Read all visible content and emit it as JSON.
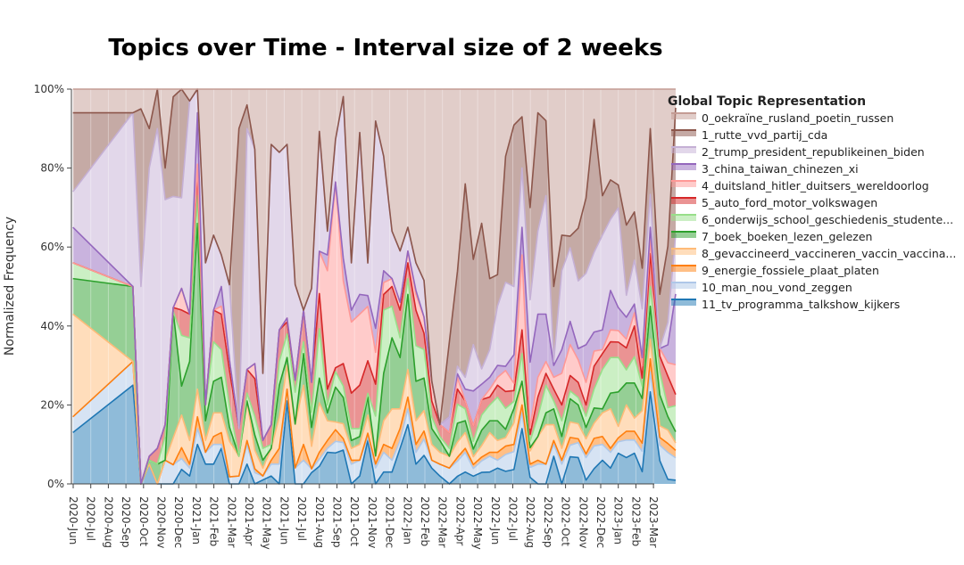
{
  "chart_data": {
    "type": "area",
    "title": "Topics over Time - Interval size of 2 weeks",
    "xlabel": "",
    "ylabel": "Normalized Frequency",
    "ylim": [
      0,
      1
    ],
    "y_ticks": [
      "0%",
      "20%",
      "40%",
      "60%",
      "80%",
      "100%"
    ],
    "y_tick_values": [
      0,
      0.2,
      0.4,
      0.6,
      0.8,
      1.0
    ],
    "x_tick_labels": [
      "2020-Jun",
      "2020-Jul",
      "2020-Aug",
      "2020-Sep",
      "2020-Oct",
      "2020-Nov",
      "2020-Dec",
      "2021-Jan",
      "2021-Feb",
      "2021-Mar",
      "2021-Apr",
      "2021-May",
      "2021-Jun",
      "2021-Jul",
      "2021-Aug",
      "2021-Sep",
      "2021-Oct",
      "2021-Nov",
      "2021-Dec",
      "2022-Jan",
      "2022-Feb",
      "2022-Mar",
      "2022-Apr",
      "2022-May",
      "2022-Jun",
      "2022-Jul",
      "2022-Aug",
      "2022-Sep",
      "2022-Oct",
      "2022-Nov",
      "2022-Dec",
      "2023-Jan",
      "2023-Feb",
      "2023-Mar"
    ],
    "x": [
      "2020-05-31",
      "2020-09-13",
      "2020-09-27",
      "2020-10-11",
      "2020-10-25",
      "2020-11-08",
      "2020-11-22",
      "2020-12-06",
      "2020-12-20",
      "2021-01-03",
      "2021-01-17",
      "2021-01-31",
      "2021-02-14",
      "2021-02-28",
      "2021-03-14",
      "2021-03-28",
      "2021-04-11",
      "2021-04-25",
      "2021-05-09",
      "2021-05-23",
      "2021-06-06",
      "2021-06-20",
      "2021-07-04",
      "2021-07-18",
      "2021-08-01",
      "2021-08-15",
      "2021-08-29",
      "2021-09-12",
      "2021-09-26",
      "2021-10-10",
      "2021-10-24",
      "2021-11-07",
      "2021-11-21",
      "2021-12-05",
      "2021-12-19",
      "2022-01-02",
      "2022-01-16",
      "2022-01-30",
      "2022-02-13",
      "2022-02-27",
      "2022-03-13",
      "2022-03-27",
      "2022-04-10",
      "2022-04-24",
      "2022-05-08",
      "2022-05-22",
      "2022-06-05",
      "2022-06-19",
      "2022-07-03",
      "2022-07-17",
      "2022-07-31",
      "2022-08-14",
      "2022-08-28",
      "2022-09-11",
      "2022-09-25",
      "2022-10-09",
      "2022-10-23",
      "2022-11-06",
      "2022-11-20",
      "2022-12-04",
      "2022-12-18",
      "2023-01-01",
      "2023-01-15",
      "2023-01-29",
      "2023-02-12",
      "2023-02-26",
      "2023-03-12",
      "2023-03-26",
      "2023-04-09"
    ],
    "legend_title": "Global Topic Representation",
    "legend_position": "right",
    "series": [
      {
        "name": "11_tv_programma_talkshow_kijkers",
        "color": "#1f77b4",
        "values": [
          0.13,
          0.25,
          0.0,
          0.05,
          0.0,
          0.0,
          0.0,
          0.04,
          0.02,
          0.1,
          0.05,
          0.05,
          0.09,
          0.0,
          0.0,
          0.05,
          0.0,
          0.01,
          0.02,
          0.0,
          0.21,
          0.0,
          0.0,
          0.03,
          0.05,
          0.08,
          0.08,
          0.09,
          0.0,
          0.02,
          0.12,
          0.0,
          0.03,
          0.03,
          0.09,
          0.15,
          0.05,
          0.07,
          0.04,
          0.02,
          0.0,
          0.02,
          0.03,
          0.02,
          0.03,
          0.03,
          0.04,
          0.03,
          0.04,
          0.14,
          0.02,
          0.0,
          0.0,
          0.07,
          0.0,
          0.07,
          0.07,
          0.01,
          0.04,
          0.06,
          0.04,
          0.08,
          0.06,
          0.07,
          0.03,
          0.14,
          0.06,
          0.01,
          0.01
        ]
      },
      {
        "name": "10_man_nou_vond_zeggen",
        "color": "#aec7e8",
        "values": [
          0.04,
          0.06,
          0.0,
          0.0,
          0.0,
          0.06,
          0.05,
          0.03,
          0.02,
          0.04,
          0.03,
          0.05,
          0.01,
          0.02,
          0.02,
          0.05,
          0.03,
          0.01,
          0.03,
          0.05,
          0.03,
          0.04,
          0.06,
          0.01,
          0.02,
          0.01,
          0.03,
          0.02,
          0.05,
          0.04,
          0.01,
          0.04,
          0.05,
          0.03,
          0.02,
          0.04,
          0.03,
          0.04,
          0.02,
          0.03,
          0.04,
          0.04,
          0.05,
          0.02,
          0.03,
          0.04,
          0.02,
          0.04,
          0.05,
          0.04,
          0.03,
          0.05,
          0.05,
          0.03,
          0.05,
          0.03,
          0.04,
          0.06,
          0.06,
          0.04,
          0.04,
          0.03,
          0.04,
          0.03,
          0.05,
          0.03,
          0.04,
          0.06,
          0.06
        ]
      },
      {
        "name": "9_energie_fossiele_plaat_platen",
        "color": "#ff7f0e",
        "values": [
          0.0,
          0.0,
          0.0,
          0.0,
          0.0,
          0.0,
          0.0,
          0.03,
          0.01,
          0.03,
          0.0,
          0.02,
          0.03,
          0.0,
          0.0,
          0.01,
          0.01,
          0.0,
          0.01,
          0.04,
          0.0,
          0.0,
          0.04,
          0.0,
          0.02,
          0.02,
          0.03,
          0.01,
          0.01,
          0.0,
          0.01,
          0.01,
          0.02,
          0.03,
          0.03,
          0.03,
          0.02,
          0.02,
          0.0,
          0.0,
          0.0,
          0.01,
          0.01,
          0.01,
          0.01,
          0.01,
          0.02,
          0.02,
          0.02,
          0.02,
          0.01,
          0.01,
          0.0,
          0.01,
          0.01,
          0.02,
          0.01,
          0.01,
          0.02,
          0.02,
          0.01,
          0.01,
          0.02,
          0.02,
          0.02,
          0.02,
          0.02,
          0.02,
          0.02
        ]
      },
      {
        "name": "8_gevaccineerd_vaccineren_vaccin_vaccina...",
        "color": "#ffbb78",
        "values": [
          0.26,
          0.0,
          0.0,
          0.0,
          0.0,
          0.0,
          0.07,
          0.09,
          0.06,
          0.07,
          0.03,
          0.06,
          0.05,
          0.1,
          0.05,
          0.1,
          0.05,
          0.02,
          0.03,
          0.08,
          0.06,
          0.11,
          0.15,
          0.06,
          0.14,
          0.05,
          0.02,
          0.04,
          0.03,
          0.04,
          0.05,
          0.02,
          0.06,
          0.1,
          0.05,
          0.07,
          0.06,
          0.05,
          0.04,
          0.03,
          0.03,
          0.04,
          0.04,
          0.02,
          0.03,
          0.05,
          0.03,
          0.02,
          0.06,
          0.06,
          0.04,
          0.06,
          0.1,
          0.04,
          0.03,
          0.04,
          0.04,
          0.04,
          0.04,
          0.06,
          0.1,
          0.03,
          0.06,
          0.03,
          0.08,
          0.03,
          0.03,
          0.03,
          0.02
        ]
      },
      {
        "name": "7_boek_boeken_lezen_gelezen",
        "color": "#2ca02c",
        "values": [
          0.09,
          0.19,
          0.0,
          0.01,
          0.05,
          0.0,
          0.33,
          0.08,
          0.2,
          0.42,
          0.05,
          0.08,
          0.09,
          0.04,
          0.0,
          0.0,
          0.04,
          0.02,
          0.0,
          0.08,
          0.02,
          0.0,
          0.08,
          0.05,
          0.07,
          0.02,
          0.09,
          0.07,
          0.02,
          0.02,
          0.05,
          0.0,
          0.12,
          0.18,
          0.13,
          0.19,
          0.1,
          0.08,
          0.04,
          0.03,
          0.0,
          0.05,
          0.03,
          0.02,
          0.04,
          0.03,
          0.05,
          0.02,
          0.04,
          0.0,
          0.01,
          0.0,
          0.03,
          0.04,
          0.03,
          0.06,
          0.05,
          0.03,
          0.04,
          0.01,
          0.04,
          0.09,
          0.05,
          0.08,
          0.03,
          0.05,
          0.08,
          0.03,
          0.03
        ]
      },
      {
        "name": "6_onderwijs_school_geschiedenis_studente...",
        "color": "#98df8a",
        "values": [
          0.04,
          0.0,
          0.0,
          0.0,
          0.0,
          0.06,
          0.0,
          0.14,
          0.06,
          0.07,
          0.04,
          0.1,
          0.07,
          0.06,
          0.0,
          0.02,
          0.05,
          0.03,
          0.01,
          0.06,
          0.06,
          0.08,
          0.03,
          0.04,
          0.14,
          0.02,
          0.04,
          0.03,
          0.03,
          0.02,
          0.01,
          0.1,
          0.16,
          0.08,
          0.05,
          0.04,
          0.09,
          0.07,
          0.03,
          0.01,
          0.02,
          0.05,
          0.03,
          0.02,
          0.04,
          0.04,
          0.06,
          0.05,
          0.02,
          0.07,
          0.02,
          0.05,
          0.07,
          0.02,
          0.04,
          0.02,
          0.02,
          0.03,
          0.05,
          0.1,
          0.09,
          0.09,
          0.03,
          0.06,
          0.03,
          0.03,
          0.06,
          0.02,
          0.07
        ]
      },
      {
        "name": "5_auto_ford_motor_volkswagen",
        "color": "#d62728",
        "values": [
          0.0,
          0.0,
          0.0,
          0.01,
          0.04,
          0.03,
          0.01,
          0.07,
          0.06,
          0.06,
          0.0,
          0.08,
          0.09,
          0.1,
          0.07,
          0.06,
          0.1,
          0.02,
          0.05,
          0.08,
          0.03,
          0.03,
          0.08,
          0.08,
          0.1,
          0.04,
          0.01,
          0.06,
          0.09,
          0.11,
          0.09,
          0.08,
          0.04,
          0.05,
          0.07,
          0.04,
          0.09,
          0.04,
          0.04,
          0.03,
          0.04,
          0.04,
          0.02,
          0.04,
          0.04,
          0.02,
          0.03,
          0.04,
          0.03,
          0.06,
          0.02,
          0.05,
          0.03,
          0.03,
          0.04,
          0.04,
          0.04,
          0.03,
          0.06,
          0.04,
          0.04,
          0.04,
          0.05,
          0.07,
          0.02,
          0.05,
          0.04,
          0.07,
          0.03
        ]
      },
      {
        "name": "4_duitsland_hitler_duitsers_wereldoorlog",
        "color": "#ff9896",
        "values": [
          0.0,
          0.0,
          0.0,
          0.0,
          0.0,
          0.0,
          0.0,
          0.06,
          0.0,
          0.02,
          0.0,
          0.0,
          0.02,
          0.03,
          0.0,
          0.0,
          0.04,
          0.0,
          0.0,
          0.0,
          0.01,
          0.0,
          0.0,
          0.0,
          0.12,
          0.3,
          0.48,
          0.22,
          0.18,
          0.18,
          0.15,
          0.08,
          0.03,
          0.02,
          0.02,
          0.03,
          0.04,
          0.04,
          0.05,
          0.0,
          0.0,
          0.03,
          0.0,
          0.0,
          0.0,
          0.02,
          0.02,
          0.05,
          0.02,
          0.19,
          0.02,
          0.05,
          0.03,
          0.03,
          0.08,
          0.08,
          0.06,
          0.06,
          0.04,
          0.01,
          0.03,
          0.03,
          0.02,
          0.03,
          0.03,
          0.02,
          0.02,
          0.03,
          0.08
        ]
      },
      {
        "name": "3_china_taiwan_chinezen_xi",
        "color": "#9467bd",
        "values": [
          0.09,
          0.0,
          0.0,
          0.0,
          0.0,
          0.0,
          0.0,
          0.0,
          0.0,
          0.13,
          0.0,
          0.0,
          0.05,
          0.0,
          0.0,
          0.0,
          0.0,
          0.0,
          0.0,
          0.0,
          0.0,
          0.0,
          0.0,
          0.0,
          0.0,
          0.04,
          0.0,
          0.06,
          0.03,
          0.05,
          0.03,
          0.06,
          0.03,
          0.0,
          0.0,
          0.0,
          0.01,
          0.0,
          0.0,
          0.0,
          0.04,
          0.01,
          0.03,
          0.09,
          0.04,
          0.03,
          0.03,
          0.01,
          0.08,
          0.07,
          0.2,
          0.16,
          0.12,
          0.03,
          0.06,
          0.06,
          0.03,
          0.1,
          0.05,
          0.05,
          0.1,
          0.06,
          0.05,
          0.02,
          0.02,
          0.02,
          0.0,
          0.04,
          0.19
        ]
      },
      {
        "name": "2_trump_president_republikeinen_biden",
        "color": "#c5b0d5",
        "values": [
          0.09,
          0.44,
          0.5,
          0.73,
          0.81,
          0.57,
          0.29,
          0.25,
          0.54,
          0.06,
          0.36,
          0.19,
          0.08,
          0.21,
          0.0,
          0.61,
          0.57,
          0.17,
          0.71,
          0.45,
          0.44,
          0.24,
          0.0,
          0.25,
          0.34,
          0.06,
          0.11,
          0.43,
          0.12,
          0.41,
          0.09,
          0.52,
          0.29,
          0.12,
          0.13,
          0.06,
          0.07,
          0.09,
          0.0,
          0.0,
          0.0,
          0.02,
          0.03,
          0.12,
          0.04,
          0.07,
          0.15,
          0.2,
          0.19,
          0.15,
          0.19,
          0.21,
          0.3,
          0.01,
          0.2,
          0.19,
          0.18,
          0.19,
          0.21,
          0.24,
          0.18,
          0.26,
          0.05,
          0.1,
          0.12,
          0.05,
          0.0,
          0.05,
          0.16
        ]
      },
      {
        "name": "1_rutte_vvd_partij_cda",
        "color": "#8c564b",
        "values": [
          0.2,
          0.0,
          0.45,
          0.1,
          0.1,
          0.08,
          0.26,
          0.3,
          0.0,
          0.0,
          0.0,
          0.0,
          0.0,
          0.0,
          0.76,
          0.06,
          0.0,
          0.0,
          0.0,
          0.0,
          0.0,
          0.0,
          0.0,
          0.0,
          0.0,
          0.0,
          0.0,
          0.0,
          0.0,
          0.0,
          0.0,
          0.0,
          0.0,
          0.0,
          0.0,
          0.0,
          0.0,
          0.0,
          0.0,
          0.0,
          0.19,
          0.25,
          0.49,
          0.22,
          0.38,
          0.18,
          0.08,
          0.3,
          0.45,
          0.13,
          0.28,
          0.3,
          0.19,
          0.19,
          0.09,
          0.03,
          0.14,
          0.2,
          0.35,
          0.1,
          0.1,
          0.06,
          0.16,
          0.11,
          0.1,
          0.1,
          0.14,
          0.17,
          0.34
        ]
      },
      {
        "name": "0_oekraïne_rusland_poetin_russen",
        "color": "#c49c94",
        "values": [
          0.06,
          0.06,
          0.05,
          0.1,
          0.0,
          0.2,
          0.02,
          0.0,
          0.03,
          0.0,
          0.44,
          0.37,
          0.42,
          0.55,
          0.1,
          0.04,
          0.16,
          0.72,
          0.14,
          0.16,
          0.14,
          0.49,
          0.56,
          0.53,
          0.12,
          0.36,
          0.13,
          0.02,
          0.44,
          0.11,
          0.48,
          0.08,
          0.17,
          0.36,
          0.41,
          0.35,
          0.44,
          0.47,
          0.74,
          0.85,
          0.64,
          0.48,
          0.24,
          0.44,
          0.35,
          0.48,
          0.47,
          0.16,
          0.1,
          0.07,
          0.36,
          0.06,
          0.08,
          0.5,
          0.37,
          0.38,
          0.37,
          0.29,
          0.08,
          0.27,
          0.23,
          0.25,
          0.31,
          0.28,
          0.44,
          0.06,
          0.53,
          0.35,
          0.05
        ]
      }
    ]
  }
}
